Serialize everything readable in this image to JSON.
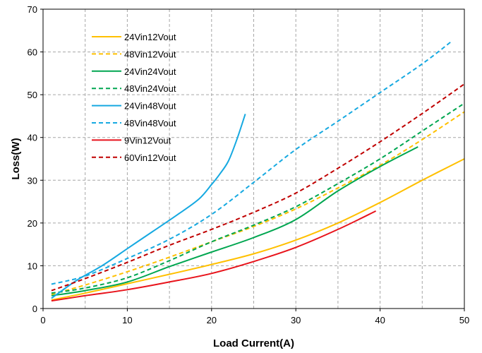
{
  "chart_data": {
    "type": "line",
    "title": "",
    "xlabel": "Load  Current(A)",
    "ylabel": "Loss(W)",
    "xlim": [
      0,
      50
    ],
    "ylim": [
      0,
      70
    ],
    "x_ticks": [
      0,
      10,
      20,
      30,
      40,
      50
    ],
    "y_ticks": [
      0,
      10,
      20,
      30,
      40,
      50,
      60,
      70
    ],
    "x_ticks_label": [
      "0",
      "10",
      "20",
      "30",
      "40",
      "50"
    ],
    "y_ticks_label": [
      "0",
      "10",
      "20",
      "30",
      "40",
      "50",
      "60",
      "70"
    ],
    "grid": true,
    "legend_position": "upper-left",
    "series": [
      {
        "name": "24Vin12Vout",
        "color": "#FFC000",
        "dash": "solid",
        "points": [
          [
            1,
            2
          ],
          [
            5,
            3.6
          ],
          [
            10,
            5.8
          ],
          [
            15,
            8
          ],
          [
            20,
            10.3
          ],
          [
            25,
            12.8
          ],
          [
            30,
            16
          ],
          [
            35,
            20
          ],
          [
            40,
            24.8
          ],
          [
            45,
            30
          ],
          [
            50,
            35
          ]
        ]
      },
      {
        "name": "48Vin12Vout",
        "color": "#FFC000",
        "dash": "dashed",
        "points": [
          [
            1,
            3.3
          ],
          [
            5,
            5.5
          ],
          [
            10,
            8.6
          ],
          [
            15,
            12
          ],
          [
            20,
            15.6
          ],
          [
            25,
            19.2
          ],
          [
            30,
            23.3
          ],
          [
            35,
            28.2
          ],
          [
            40,
            33.5
          ],
          [
            45,
            39.5
          ],
          [
            50,
            46
          ]
        ]
      },
      {
        "name": "24Vin24Vout",
        "color": "#00A650",
        "dash": "solid",
        "points": [
          [
            1,
            3
          ],
          [
            5,
            4.2
          ],
          [
            10,
            6.2
          ],
          [
            15,
            9.8
          ],
          [
            20,
            13.2
          ],
          [
            25,
            16.6
          ],
          [
            30,
            20.8
          ],
          [
            35,
            27.5
          ],
          [
            40,
            33.2
          ],
          [
            44.5,
            37.8
          ]
        ]
      },
      {
        "name": "48Vin24Vout",
        "color": "#00A650",
        "dash": "dashed",
        "points": [
          [
            1,
            3.6
          ],
          [
            5,
            4.8
          ],
          [
            10,
            7.2
          ],
          [
            15,
            11.2
          ],
          [
            20,
            15.6
          ],
          [
            25,
            19.5
          ],
          [
            30,
            23.8
          ],
          [
            35,
            29.2
          ],
          [
            40,
            35
          ],
          [
            45,
            41.5
          ],
          [
            50,
            48
          ]
        ]
      },
      {
        "name": "24Vin48Vout",
        "color": "#16A9E1",
        "dash": "solid",
        "points": [
          [
            1,
            2.4
          ],
          [
            4,
            6.6
          ],
          [
            7,
            10
          ],
          [
            10,
            14
          ],
          [
            13,
            18
          ],
          [
            16,
            22
          ],
          [
            18.5,
            25.6
          ],
          [
            20,
            29
          ],
          [
            21,
            31.5
          ],
          [
            22,
            34.5
          ],
          [
            23,
            39.5
          ],
          [
            24,
            45.5
          ]
        ]
      },
      {
        "name": "48Vin48Vout",
        "color": "#16A9E1",
        "dash": "dashed",
        "points": [
          [
            1,
            5.7
          ],
          [
            5,
            7.6
          ],
          [
            10,
            11.7
          ],
          [
            15,
            16.2
          ],
          [
            20,
            22
          ],
          [
            25,
            29.5
          ],
          [
            30,
            37.2
          ],
          [
            35,
            43.8
          ],
          [
            40,
            50.5
          ],
          [
            45,
            57.2
          ],
          [
            48.5,
            62.5
          ]
        ]
      },
      {
        "name": "9Vin12Vout",
        "color": "#E8131B",
        "dash": "solid",
        "points": [
          [
            1,
            1.8
          ],
          [
            5,
            3
          ],
          [
            10,
            4.4
          ],
          [
            15,
            6.2
          ],
          [
            20,
            8.2
          ],
          [
            25,
            11
          ],
          [
            30,
            14.3
          ],
          [
            35,
            18.5
          ],
          [
            39.5,
            22.8
          ]
        ]
      },
      {
        "name": "60Vin12Vout",
        "color": "#C00000",
        "dash": "dashed",
        "points": [
          [
            1,
            4.2
          ],
          [
            5,
            7
          ],
          [
            10,
            10.8
          ],
          [
            15,
            14.8
          ],
          [
            20,
            18.5
          ],
          [
            25,
            22.5
          ],
          [
            30,
            27
          ],
          [
            35,
            32.8
          ],
          [
            40,
            39
          ],
          [
            45,
            45.6
          ],
          [
            50,
            52.5
          ]
        ]
      }
    ]
  }
}
